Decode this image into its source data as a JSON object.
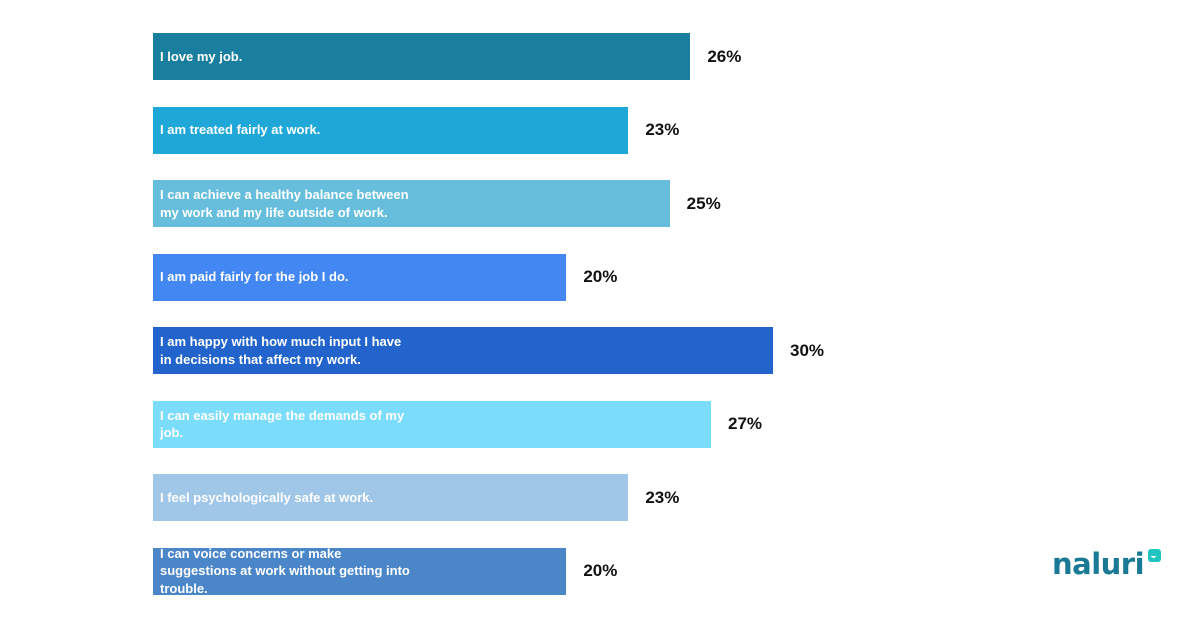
{
  "chart_data": {
    "type": "bar",
    "orientation": "horizontal",
    "categories": [
      "I love my job.",
      "I am treated fairly at work.",
      "I can achieve a healthy balance between my work and my life outside of work.",
      "I am paid fairly for the job I do.",
      "I am happy with how much input I have in decisions that affect my work.",
      "I can easily manage the demands of my job.",
      "I feel psychologically safe at work.",
      "I can voice concerns or make suggestions at work without getting into trouble."
    ],
    "values": [
      26,
      23,
      25,
      20,
      30,
      27,
      23,
      20
    ],
    "value_labels": [
      "26%",
      "23%",
      "25%",
      "20%",
      "30%",
      "27%",
      "23%",
      "20%"
    ],
    "bar_colors": [
      "#1a7f9f",
      "#1ea7d7",
      "#66bedc",
      "#4287f2",
      "#2264cc",
      "#7cdcfb",
      "#a0c6e8",
      "#4a86c8"
    ],
    "title": "",
    "xlabel": "",
    "ylabel": "",
    "xlim": [
      0,
      30
    ],
    "grid": false,
    "legend": "none"
  },
  "brand": {
    "logo_text": "naluri",
    "logo_color": "#1a7a96",
    "logo_accent": "#22c4c0"
  }
}
